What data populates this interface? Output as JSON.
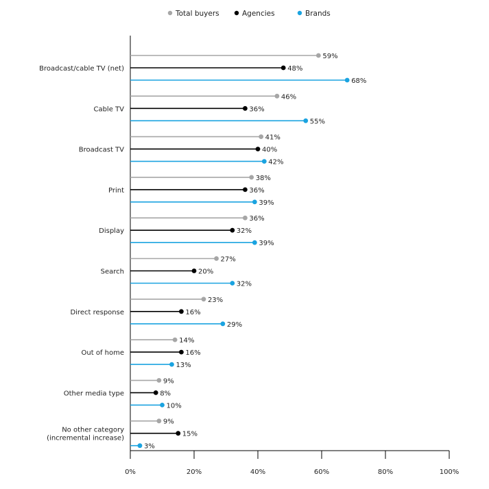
{
  "chart_data": {
    "type": "bar",
    "orientation": "horizontal",
    "style": "lollipop",
    "categories": [
      [
        "Broadcast/cable TV (net)"
      ],
      [
        "Cable TV"
      ],
      [
        "Broadcast TV"
      ],
      [
        "Print"
      ],
      [
        "Display"
      ],
      [
        "Search"
      ],
      [
        "Direct response"
      ],
      [
        "Out of home"
      ],
      [
        "Other media type"
      ],
      [
        "No other category",
        "(incremental increase)"
      ]
    ],
    "series": [
      {
        "name": "Total buyers",
        "color": "#a6a6a6",
        "values": [
          59,
          46,
          41,
          38,
          36,
          27,
          23,
          14,
          9,
          9
        ]
      },
      {
        "name": "Agencies",
        "color": "#000000",
        "values": [
          48,
          36,
          40,
          36,
          32,
          20,
          16,
          16,
          8,
          15
        ]
      },
      {
        "name": "Brands",
        "color": "#1aa3e0",
        "values": [
          68,
          55,
          42,
          39,
          39,
          32,
          29,
          13,
          10,
          3
        ]
      }
    ],
    "value_suffix": "%",
    "xlim": [
      0,
      100
    ],
    "x_ticks": [
      0,
      20,
      40,
      60,
      80,
      100
    ],
    "x_tick_labels": [
      "0%",
      "20%",
      "40%",
      "60%",
      "80%",
      "100%"
    ],
    "legend_position": "top-center",
    "grid": false
  }
}
